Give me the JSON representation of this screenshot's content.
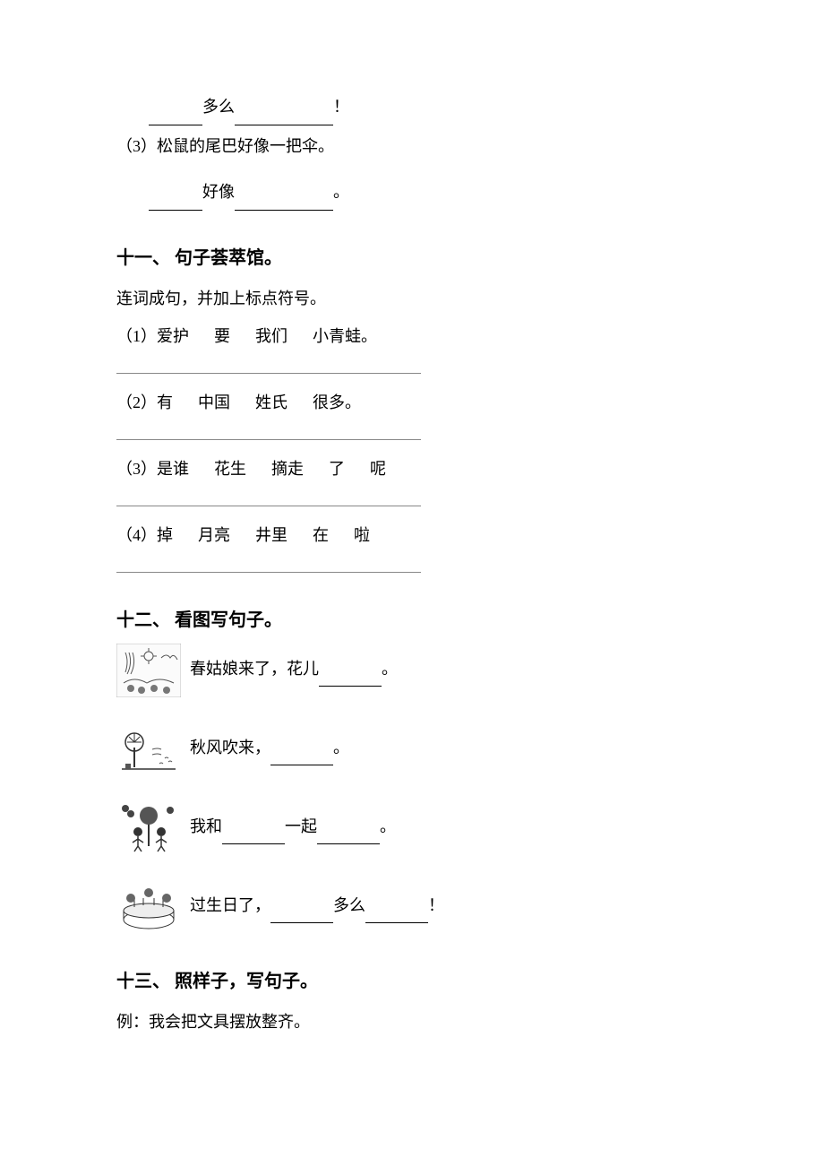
{
  "top": {
    "line1_a": "多么",
    "line1_b": "！",
    "line2": "（3）松鼠的尾巴好像一把伞。",
    "line3_a": "好像",
    "line3_b": "。"
  },
  "section11": {
    "title": "十一、 句子荟萃馆。",
    "instruction": "连词成句，并加上标点符号。",
    "items": [
      {
        "label": "（1）",
        "words": [
          "爱护",
          "要",
          "我们",
          "小青蛙。"
        ]
      },
      {
        "label": "（2）",
        "words": [
          "有",
          "中国",
          "姓氏",
          "很多。"
        ]
      },
      {
        "label": "（3）",
        "words": [
          "是谁",
          "花生",
          "摘走",
          "了",
          "呢"
        ]
      },
      {
        "label": "（4）",
        "words": [
          "掉",
          "月亮",
          "井里",
          "在",
          "啦"
        ]
      }
    ]
  },
  "section12": {
    "title": "十二、 看图写句子。",
    "rows": [
      {
        "prefix": "春姑娘来了，花儿",
        "suffix": "。",
        "icon": "spring"
      },
      {
        "prefix": "秋风吹来，",
        "suffix": "。",
        "icon": "autumn"
      },
      {
        "prefix": "我和",
        "mid": "一起",
        "suffix": "。",
        "icon": "play"
      },
      {
        "prefix": "过生日了，",
        "mid": "多么",
        "suffix": "！",
        "icon": "birthday"
      }
    ]
  },
  "section13": {
    "title": "十三、 照样子，写句子。",
    "example": "例：我会把文具摆放整齐。"
  },
  "style": {
    "font_color": "#000000",
    "bg_color": "#ffffff",
    "body_fontsize": 18,
    "title_fontsize": 20
  }
}
